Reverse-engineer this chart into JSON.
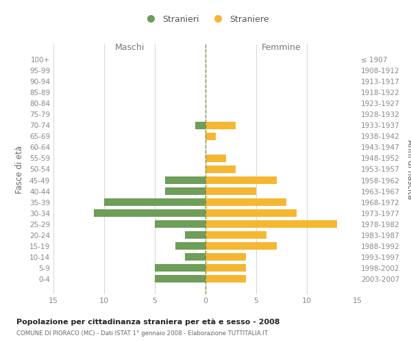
{
  "age_groups": [
    "100+",
    "95-99",
    "90-94",
    "85-89",
    "80-84",
    "75-79",
    "70-74",
    "65-69",
    "60-64",
    "55-59",
    "50-54",
    "45-49",
    "40-44",
    "35-39",
    "30-34",
    "25-29",
    "20-24",
    "15-19",
    "10-14",
    "5-9",
    "0-4"
  ],
  "birth_years": [
    "≤ 1907",
    "1908-1912",
    "1913-1917",
    "1918-1922",
    "1923-1927",
    "1928-1932",
    "1933-1937",
    "1938-1942",
    "1943-1947",
    "1948-1952",
    "1953-1957",
    "1958-1962",
    "1963-1967",
    "1968-1972",
    "1973-1977",
    "1978-1982",
    "1983-1987",
    "1988-1992",
    "1993-1997",
    "1998-2002",
    "2003-2007"
  ],
  "maschi": [
    0,
    0,
    0,
    0,
    0,
    0,
    1,
    0,
    0,
    0,
    0,
    4,
    4,
    10,
    11,
    5,
    2,
    3,
    2,
    5,
    5
  ],
  "femmine": [
    0,
    0,
    0,
    0,
    0,
    0,
    3,
    1,
    0,
    2,
    3,
    7,
    5,
    8,
    9,
    13,
    6,
    7,
    4,
    4,
    4
  ],
  "color_maschi": "#6e9e5a",
  "color_femmine": "#f5b731",
  "color_center_line": "#8a8a3a",
  "xlim": 15,
  "title": "Popolazione per cittadinanza straniera per età e sesso - 2008",
  "subtitle": "COMUNE DI PIORACO (MC) - Dati ISTAT 1° gennaio 2008 - Elaborazione TUTTITALIA.IT",
  "ylabel_left": "Fasce di età",
  "ylabel_right": "Anni di nascita",
  "label_maschi": "Maschi",
  "label_femmine": "Femmine",
  "legend_stranieri": "Stranieri",
  "legend_straniere": "Straniere",
  "bg_color": "#ffffff",
  "grid_color": "#d8d8d8",
  "tick_color": "#888888",
  "bar_height": 0.72
}
